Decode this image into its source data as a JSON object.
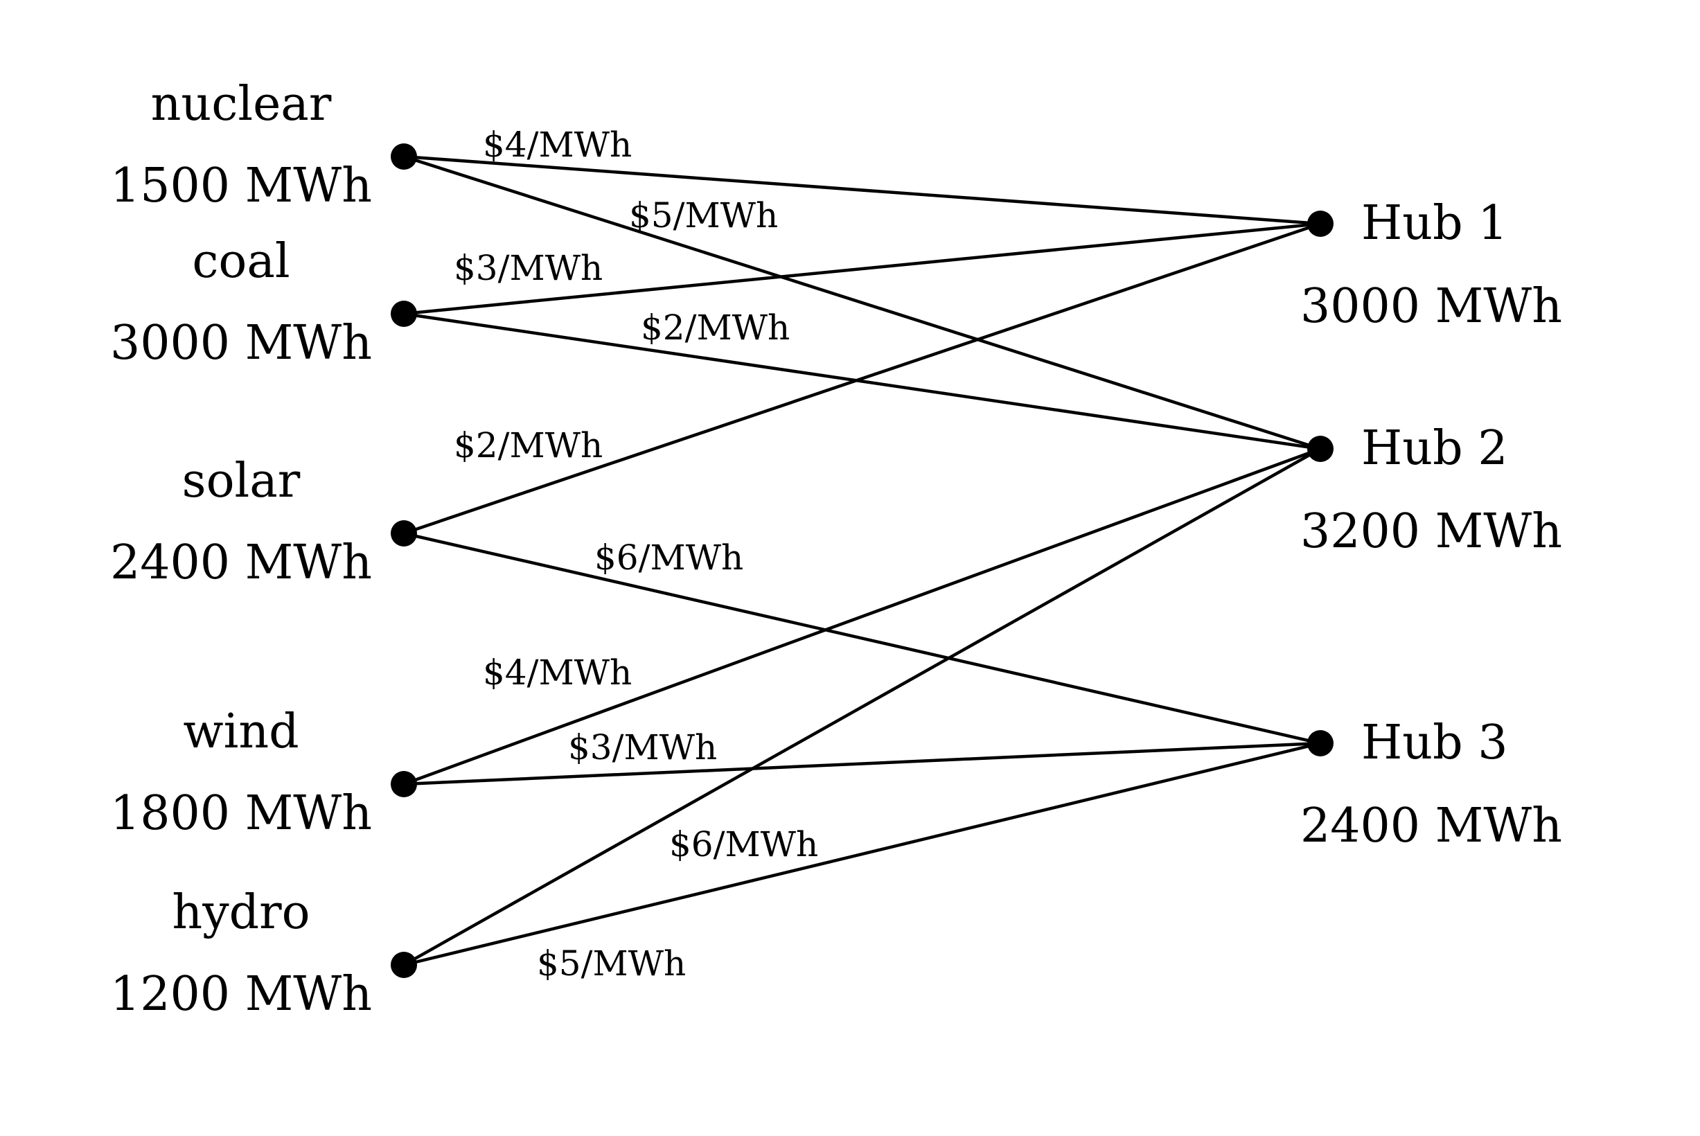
{
  "sources": [
    {
      "id": "nuclear",
      "name": "nuclear",
      "amount": "1500 MWh"
    },
    {
      "id": "coal",
      "name": "coal",
      "amount": "3000 MWh"
    },
    {
      "id": "solar",
      "name": "solar",
      "amount": "2400 MWh"
    },
    {
      "id": "wind",
      "name": "wind",
      "amount": "1800 MWh"
    },
    {
      "id": "hydro",
      "name": "hydro",
      "amount": "1200 MWh"
    }
  ],
  "hubs": [
    {
      "id": "hub-1",
      "name": "Hub 1",
      "amount": "3000 MWh"
    },
    {
      "id": "hub-2",
      "name": "Hub 2",
      "amount": "3200 MWh"
    },
    {
      "id": "hub-3",
      "name": "Hub 3",
      "amount": "2400 MWh"
    }
  ],
  "edges": [
    {
      "from": "nuclear",
      "to": "hub-1",
      "cost": "$4/MWh"
    },
    {
      "from": "nuclear",
      "to": "hub-2",
      "cost": "$5/MWh"
    },
    {
      "from": "coal",
      "to": "hub-1",
      "cost": "$3/MWh"
    },
    {
      "from": "coal",
      "to": "hub-2",
      "cost": "$2/MWh"
    },
    {
      "from": "solar",
      "to": "hub-1",
      "cost": "$2/MWh"
    },
    {
      "from": "solar",
      "to": "hub-3",
      "cost": "$6/MWh"
    },
    {
      "from": "wind",
      "to": "hub-2",
      "cost": "$4/MWh"
    },
    {
      "from": "wind",
      "to": "hub-3",
      "cost": "$3/MWh"
    },
    {
      "from": "hydro",
      "to": "hub-2",
      "cost": "$6/MWh"
    },
    {
      "from": "hydro",
      "to": "hub-3",
      "cost": "$5/MWh"
    }
  ]
}
